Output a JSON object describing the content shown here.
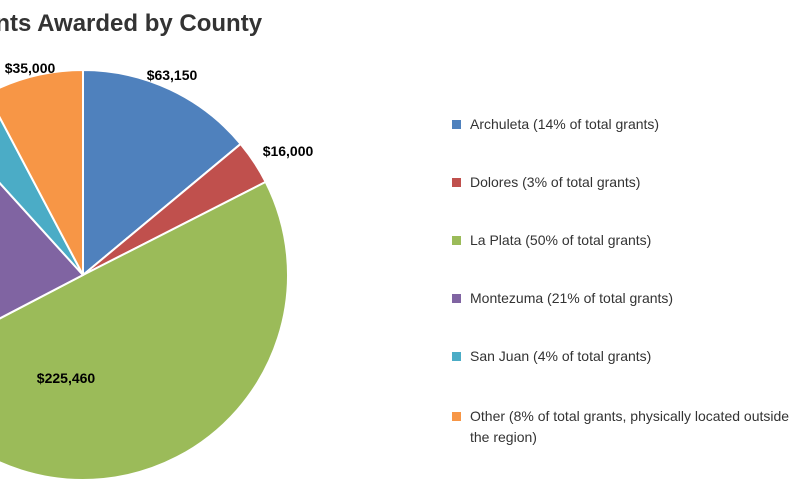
{
  "chart_data": {
    "type": "pie",
    "title": "Grants Awarded by County",
    "slices": [
      {
        "label": "Archuleta (14% of total grants)",
        "value": 63150,
        "value_label": "$63,150",
        "color": "#4f81bd"
      },
      {
        "label": "Dolores (3% of total grants)",
        "value": 16000,
        "value_label": "$16,000",
        "color": "#c0504d"
      },
      {
        "label": "La Plata (50% of total grants)",
        "value": 225460,
        "value_label": "$225,460",
        "color": "#9bbb59"
      },
      {
        "label": "Montezuma (21% of total grants)",
        "value": 94700,
        "value_label": "",
        "color": "#8064a2"
      },
      {
        "label": "San Juan (4% of total grants)",
        "value": 18000,
        "value_label": "",
        "color": "#4bacc6"
      },
      {
        "label": "Other (8% of total grants, physically located outside the region)",
        "value": 35000,
        "value_label": "$35,000",
        "color": "#f79646"
      }
    ],
    "legend_position": "right"
  }
}
